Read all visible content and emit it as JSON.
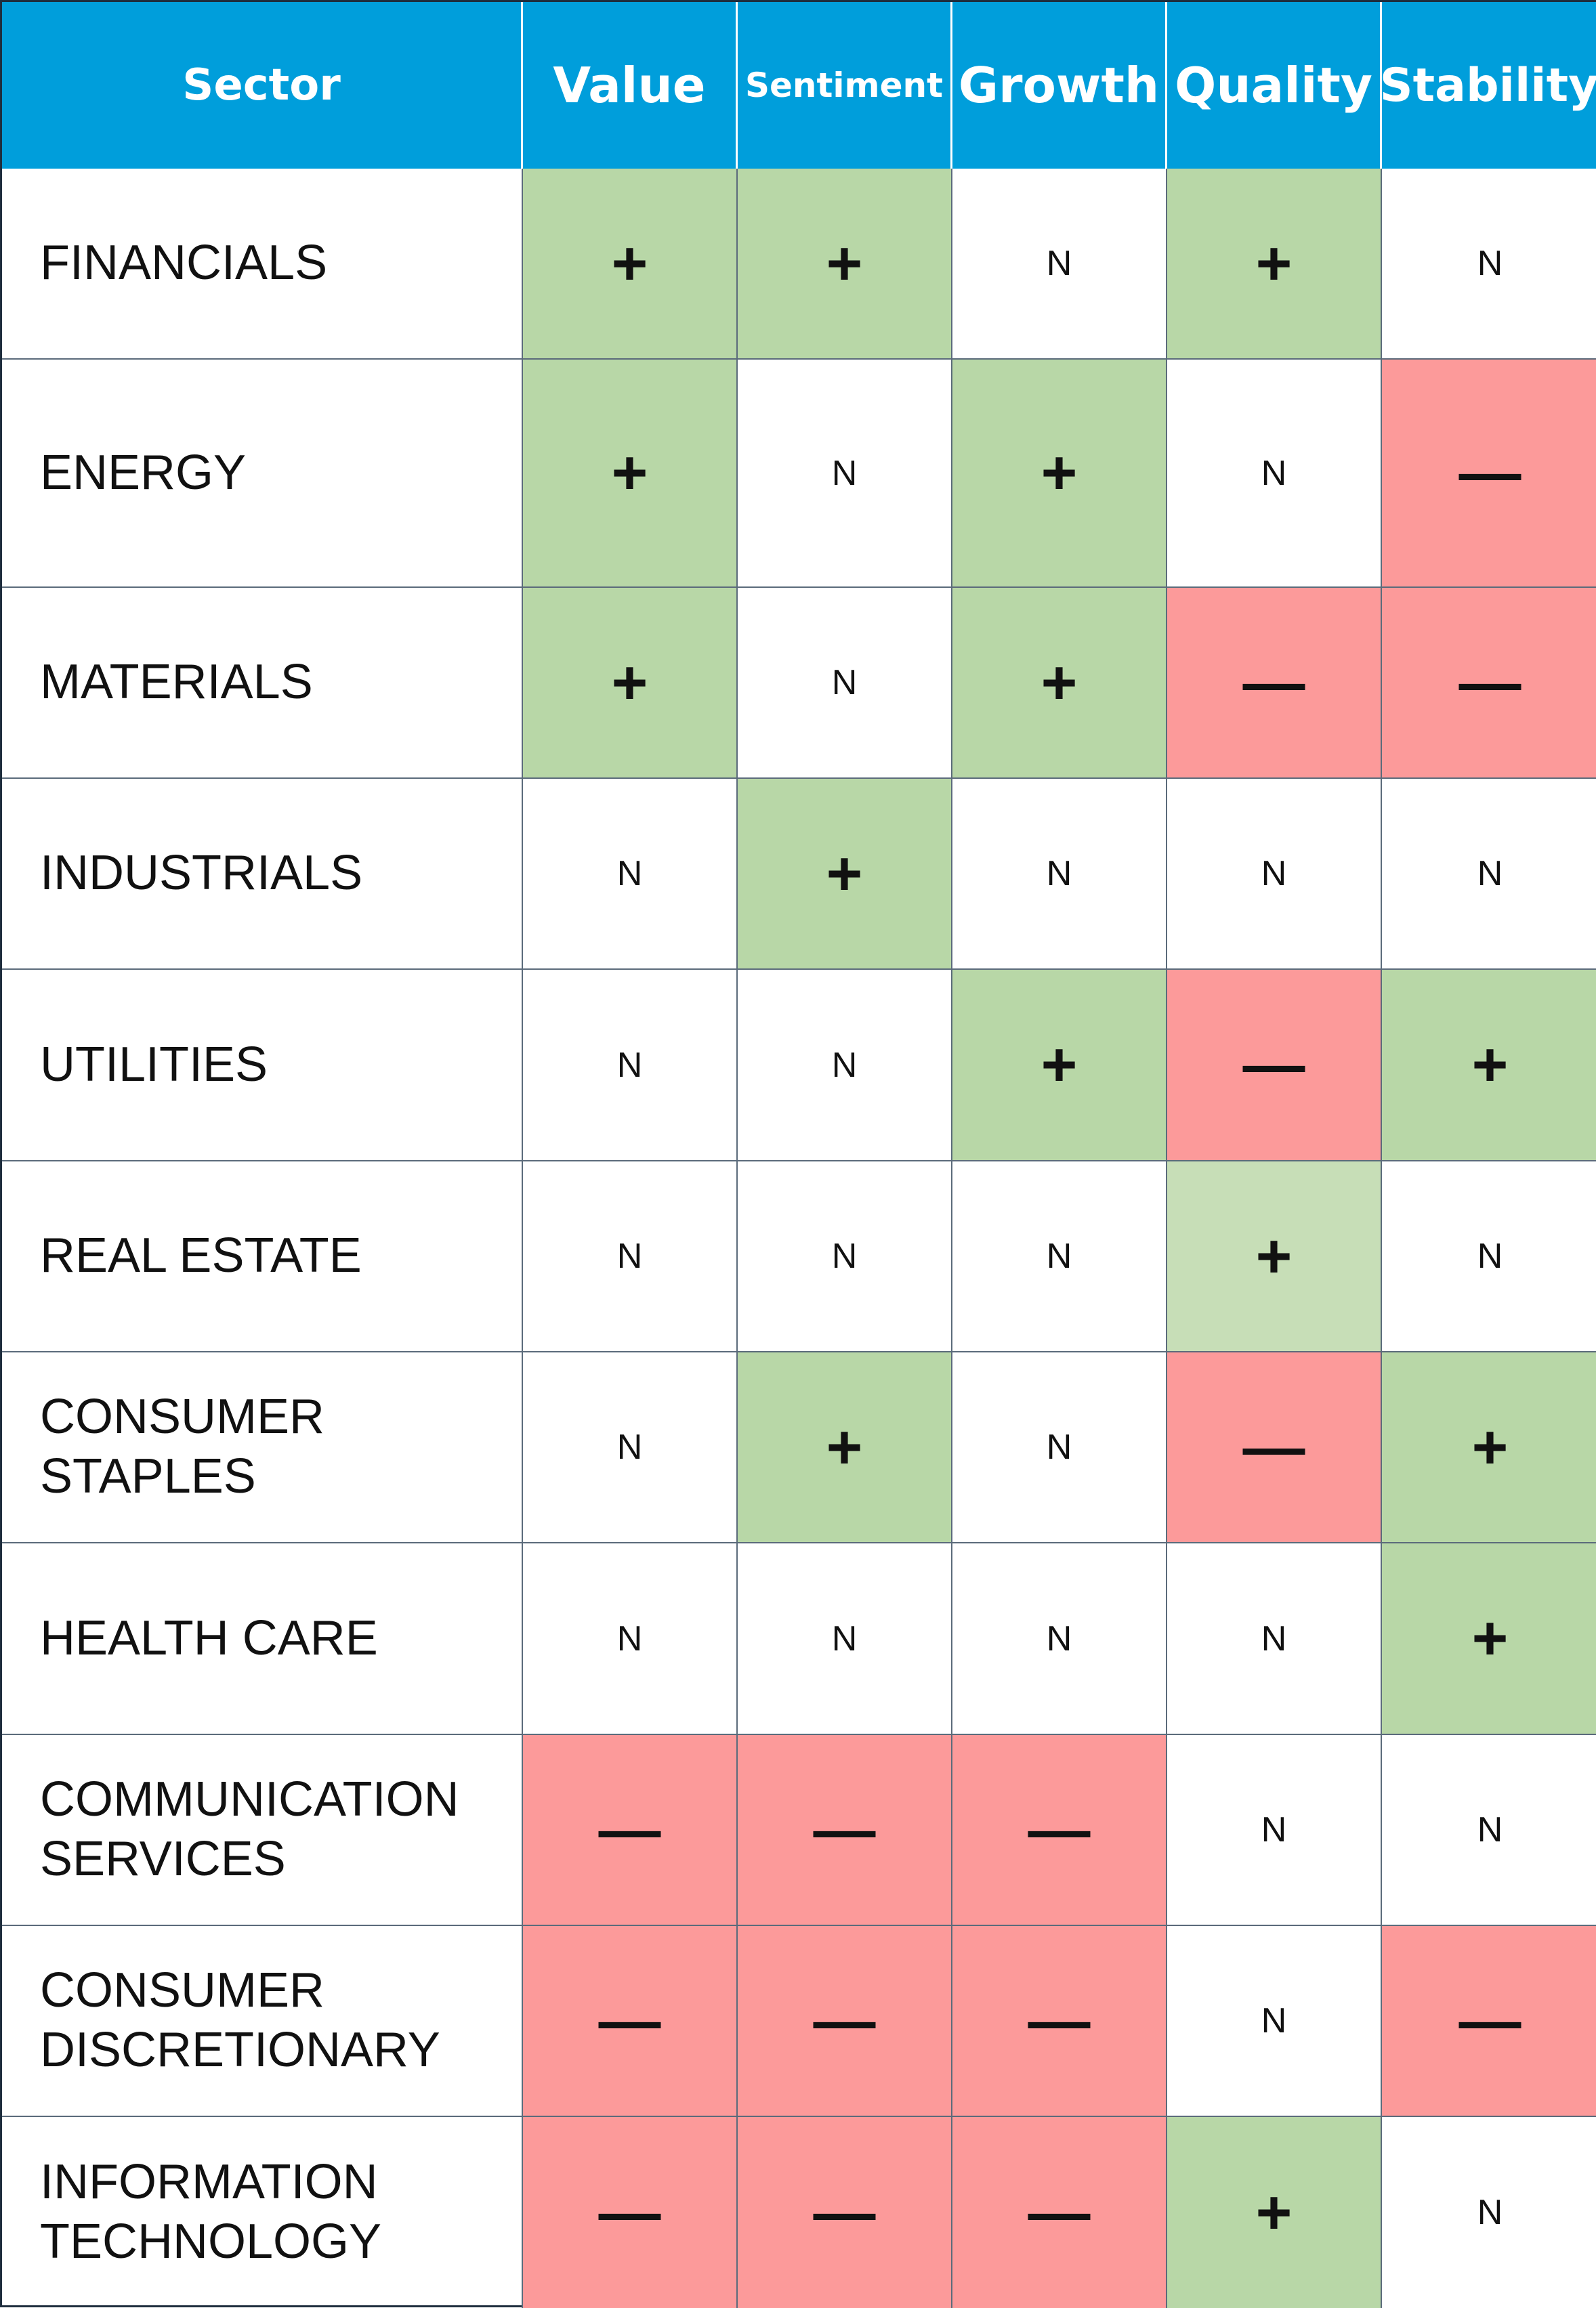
{
  "colors": {
    "header_bg": "#009edb",
    "header_text": "#ffffff",
    "positive": "#b8d7a7",
    "positive_light": "#c7deb7",
    "negative": "#fc9a9a",
    "neutral": "#ffffff",
    "border": "#5b6b7b"
  },
  "chart_data": {
    "type": "table",
    "columns": [
      "Sector",
      "Value",
      "Sentiment",
      "Growth",
      "Quality",
      "Stability"
    ],
    "rows": [
      {
        "sector": "FINANCIALS",
        "values": [
          "+",
          "+",
          "N",
          "+",
          "N"
        ]
      },
      {
        "sector": "ENERGY",
        "values": [
          "+",
          "N",
          "+",
          "N",
          "—"
        ]
      },
      {
        "sector": "MATERIALS",
        "values": [
          "+",
          "N",
          "+",
          "—",
          "—"
        ]
      },
      {
        "sector": "INDUSTRIALS",
        "values": [
          "N",
          "+",
          "N",
          "N",
          "N"
        ]
      },
      {
        "sector": "UTILITIES",
        "values": [
          "N",
          "N",
          "+",
          "—",
          "+"
        ]
      },
      {
        "sector": "REAL ESTATE",
        "values": [
          "N",
          "N",
          "N",
          "+",
          "N"
        ]
      },
      {
        "sector": "CONSUMER\nSTAPLES",
        "values": [
          "N",
          "+",
          "N",
          "—",
          "+"
        ]
      },
      {
        "sector": "HEALTH CARE",
        "values": [
          "N",
          "N",
          "N",
          "N",
          "+"
        ]
      },
      {
        "sector": "COMMUNICATION\nSERVICES",
        "values": [
          "—",
          "—",
          "—",
          "N",
          "N"
        ]
      },
      {
        "sector": "CONSUMER\nDISCRETIONARY",
        "values": [
          "—",
          "—",
          "—",
          "N",
          "—"
        ]
      },
      {
        "sector": "INFORMATION\nTECHNOLOGY",
        "values": [
          "—",
          "—",
          "—",
          "+",
          "N"
        ]
      }
    ],
    "light_positive_cells": [
      [
        5,
        3
      ]
    ]
  }
}
